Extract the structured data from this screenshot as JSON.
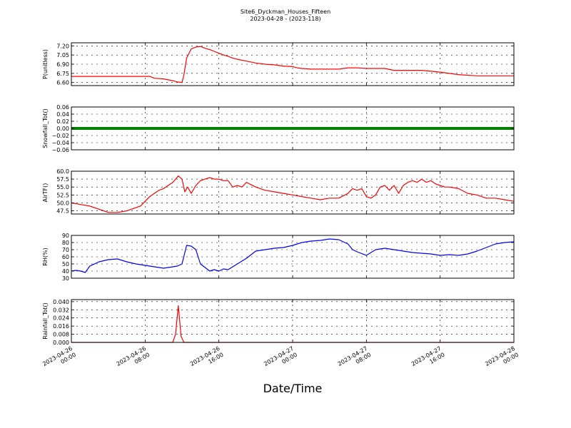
{
  "figure": {
    "title_line1": "Site6_Dyckman_Houses_Fifteen",
    "title_line2": "2023-04-28 - (2023-118)",
    "xlabel": "Date/Time"
  },
  "chart_data": [
    {
      "type": "line",
      "ylabel": "P(unitless)",
      "ylim": [
        6.55,
        7.25
      ],
      "yticks": [
        6.6,
        6.75,
        6.9,
        7.05,
        7.2
      ],
      "yticklabels": [
        "6.60",
        "6.75",
        "6.90",
        "7.05",
        "7.20"
      ],
      "xlim_hours": [
        0,
        48
      ],
      "grid": true,
      "series": [
        {
          "color": "#ff0000",
          "x": [
            0,
            3,
            6,
            8,
            8.5,
            9,
            10,
            11,
            11.5,
            12,
            12.2,
            12.5,
            13,
            13.5,
            14,
            14.5,
            15,
            15.5,
            16,
            16.5,
            17,
            17.5,
            18,
            19,
            20,
            21,
            22,
            23,
            24,
            24.5,
            25,
            26,
            28,
            29,
            30,
            31,
            32,
            33,
            34,
            35,
            36,
            37,
            38,
            40,
            41,
            42,
            44,
            48
          ],
          "y": [
            6.7,
            6.7,
            6.7,
            6.7,
            6.7,
            6.67,
            6.66,
            6.63,
            6.61,
            6.6,
            6.72,
            7.0,
            7.15,
            7.18,
            7.19,
            7.16,
            7.14,
            7.11,
            7.08,
            7.05,
            7.03,
            7.0,
            6.98,
            6.95,
            6.92,
            6.9,
            6.89,
            6.87,
            6.86,
            6.84,
            6.83,
            6.82,
            6.82,
            6.82,
            6.84,
            6.84,
            6.83,
            6.83,
            6.83,
            6.8,
            6.8,
            6.8,
            6.8,
            6.77,
            6.75,
            6.73,
            6.71,
            6.71
          ]
        }
      ]
    },
    {
      "type": "line",
      "ylabel": "Snowfall_Tot()",
      "ylim": [
        -0.06,
        0.06
      ],
      "yticks": [
        -0.06,
        -0.04,
        -0.02,
        0.0,
        0.02,
        0.04,
        0.06
      ],
      "yticklabels": [
        "−0.06",
        "−0.04",
        "−0.02",
        "0.00",
        "0.02",
        "0.04",
        "0.06"
      ],
      "xlim_hours": [
        0,
        48
      ],
      "grid": true,
      "series": [
        {
          "color": "#008000",
          "thick": true,
          "x": [
            0,
            48
          ],
          "y": [
            0.0,
            0.0
          ]
        }
      ]
    },
    {
      "type": "line",
      "ylabel": "AirTF()",
      "ylim": [
        46.5,
        60
      ],
      "yticks": [
        47.5,
        50.0,
        52.5,
        55.0,
        57.5,
        60.0
      ],
      "yticklabels": [
        "47.5",
        "50.0",
        "52.5",
        "55.0",
        "57.5",
        "60.0"
      ],
      "xlim_hours": [
        0,
        48
      ],
      "grid": true,
      "series": [
        {
          "color": "#ff0000",
          "x": [
            0,
            1,
            2,
            3,
            3.5,
            4,
            5,
            6,
            6.5,
            7,
            7.5,
            8,
            8.5,
            9,
            9.5,
            10,
            10.5,
            11,
            11.3,
            11.6,
            12,
            12.3,
            12.6,
            13,
            13.5,
            14,
            14.5,
            15,
            15.5,
            16,
            16.5,
            17,
            17.5,
            18,
            18.5,
            19,
            20,
            21,
            22,
            23,
            24,
            25,
            26,
            27,
            28,
            29,
            30,
            30.5,
            31,
            31.5,
            32,
            32.5,
            33,
            33.5,
            34,
            34.5,
            35,
            35.5,
            36,
            36.5,
            37,
            37.5,
            38,
            38.5,
            39,
            39.5,
            40,
            40.5,
            41,
            42,
            43,
            44,
            45,
            46,
            47,
            48
          ],
          "y": [
            50.0,
            49.5,
            49.0,
            48.0,
            47.5,
            47.0,
            47.0,
            47.5,
            48.0,
            48.5,
            49.0,
            50.5,
            52.0,
            53.0,
            54.0,
            54.5,
            55.5,
            56.5,
            57.5,
            58.5,
            57.5,
            53.5,
            55.0,
            53.0,
            55.5,
            57.0,
            57.5,
            58.0,
            57.5,
            57.5,
            57.0,
            57.0,
            55.0,
            55.5,
            55.0,
            56.5,
            55.0,
            54.0,
            53.5,
            53.0,
            52.5,
            52.0,
            51.5,
            51.0,
            51.5,
            51.5,
            53.0,
            54.5,
            54.0,
            54.5,
            52.0,
            51.5,
            52.5,
            55.0,
            55.5,
            54.0,
            55.5,
            53.0,
            55.5,
            56.5,
            57.0,
            56.5,
            57.5,
            56.5,
            57.0,
            56.0,
            55.5,
            55.0,
            55.0,
            54.5,
            53.0,
            52.5,
            51.5,
            51.5,
            51.0,
            50.5
          ]
        }
      ]
    },
    {
      "type": "line",
      "ylabel": "RH(%)",
      "ylim": [
        30,
        90
      ],
      "yticks": [
        30,
        40,
        50,
        60,
        70,
        80,
        90
      ],
      "yticklabels": [
        "30",
        "40",
        "50",
        "60",
        "70",
        "80",
        "90"
      ],
      "xlim_hours": [
        0,
        48
      ],
      "grid": true,
      "series": [
        {
          "color": "#0000ff",
          "x": [
            0,
            0.5,
            1,
            1.5,
            2,
            3,
            4,
            5,
            6,
            7,
            8,
            9,
            10,
            11,
            11.5,
            12,
            12.5,
            13,
            13.5,
            14,
            14.5,
            15,
            15.5,
            16,
            16.5,
            17,
            18,
            19,
            20,
            21,
            22,
            23,
            24,
            25,
            26,
            27,
            28,
            29,
            30,
            30.5,
            31,
            32,
            33,
            34,
            35,
            36,
            37,
            38,
            39,
            40,
            41,
            42,
            43,
            44,
            45,
            46,
            47,
            48
          ],
          "y": [
            40,
            41,
            40,
            38,
            47,
            53,
            56,
            57,
            53,
            50,
            48,
            46,
            44,
            46,
            47,
            50,
            76,
            75,
            70,
            50,
            45,
            40,
            42,
            40,
            43,
            42,
            50,
            58,
            68,
            70,
            72,
            73,
            76,
            80,
            82,
            83,
            85,
            84,
            78,
            70,
            67,
            62,
            70,
            72,
            70,
            68,
            66,
            65,
            64,
            62,
            63,
            62,
            64,
            68,
            73,
            78,
            80,
            81
          ]
        }
      ]
    },
    {
      "type": "line",
      "ylabel": "Rainfall_Tot()",
      "ylim": [
        0,
        0.042
      ],
      "yticks": [
        0.0,
        0.008,
        0.016,
        0.024,
        0.032,
        0.04
      ],
      "yticklabels": [
        "0.000",
        "0.008",
        "0.016",
        "0.024",
        "0.032",
        "0.040"
      ],
      "xlim_hours": [
        0,
        48
      ],
      "grid": true,
      "series": [
        {
          "color": "#ff0000",
          "x": [
            0,
            11.0,
            11.3,
            11.6,
            11.9,
            12.2,
            48
          ],
          "y": [
            0,
            0,
            0.008,
            0.036,
            0.006,
            0,
            0
          ]
        }
      ]
    }
  ],
  "xaxis": {
    "ticks": [
      0,
      8,
      16,
      24,
      32,
      40,
      48
    ],
    "tick_line1": [
      "2023-04-26",
      "2023-04-26",
      "2023-04-26",
      "2023-04-27",
      "2023-04-27",
      "2023-04-27",
      "2023-04-28"
    ],
    "tick_line2": [
      "00:00",
      "08:00",
      "16:00",
      "00:00",
      "08:00",
      "16:00",
      "00:00"
    ]
  }
}
